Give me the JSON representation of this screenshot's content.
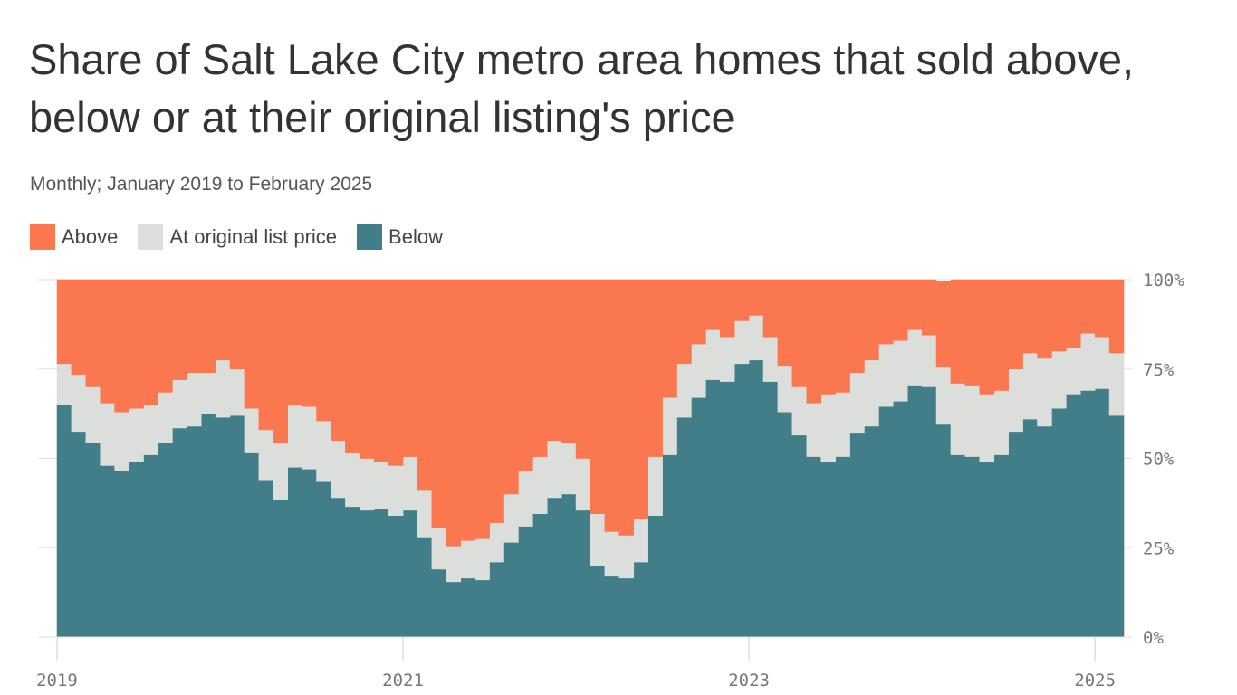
{
  "title": "Share of Salt Lake City metro area homes that sold above, below or at their original listing's price",
  "subtitle": "Monthly; January 2019 to February 2025",
  "legend": [
    {
      "label": "Above",
      "color": "#fb7750"
    },
    {
      "label": "At original list price",
      "color": "#dcdedc"
    },
    {
      "label": "Below",
      "color": "#427e89"
    }
  ],
  "chart_data": {
    "type": "area",
    "stacked": true,
    "percent": true,
    "x_start": "2019-01",
    "x_end": "2025-02",
    "x_tick_labels": [
      "2019",
      "2021",
      "2023",
      "2025"
    ],
    "y_tick_labels": [
      "0%",
      "25%",
      "50%",
      "75%",
      "100%"
    ],
    "ylim": [
      0,
      100
    ],
    "grid": true,
    "legend_position": "top-left",
    "series": [
      {
        "name": "Below",
        "color": "#427e89",
        "values": [
          65,
          57.5,
          54.5,
          48,
          46.5,
          49,
          51,
          54.5,
          58.5,
          59,
          62.5,
          61.5,
          62,
          51.5,
          44,
          38.5,
          47.5,
          47,
          43.5,
          39,
          36.5,
          35.5,
          36,
          34,
          35.5,
          28,
          19,
          15.5,
          16.5,
          16,
          21,
          26.5,
          31,
          34.5,
          39,
          40,
          35.5,
          20,
          17,
          16.5,
          21,
          34,
          51,
          61.5,
          67,
          72,
          71.5,
          76.5,
          77.5,
          71.5,
          63,
          56.5,
          50.5,
          49,
          50.5,
          57,
          59,
          64.5,
          66,
          70.5,
          70,
          59.5,
          51,
          50.5,
          49,
          51,
          57.5,
          61,
          59,
          64,
          68,
          69,
          69.5,
          62
        ]
      },
      {
        "name": "At original list price",
        "color": "#dcdedc",
        "values": [
          11.5,
          16,
          15.5,
          17.5,
          16.5,
          15,
          14,
          14,
          13.5,
          15,
          11.5,
          16,
          13,
          12.5,
          14,
          16,
          17.5,
          17.5,
          17,
          16,
          15,
          14.5,
          13,
          14,
          15,
          13,
          11.5,
          10,
          10.5,
          11.5,
          11,
          13.5,
          15.5,
          16,
          16,
          14.5,
          14.5,
          14.5,
          12.5,
          12,
          12,
          16.5,
          16,
          15,
          15,
          14,
          12.5,
          12,
          12.5,
          12.5,
          13,
          13.5,
          15,
          19,
          18,
          17,
          18.5,
          17.5,
          17,
          15.5,
          14.5,
          16,
          20,
          20,
          19,
          18,
          17.5,
          18.5,
          19,
          16,
          13,
          16,
          14.5,
          17.5
        ]
      },
      {
        "name": "Above",
        "color": "#fb7750",
        "values": [
          23.5,
          26.5,
          30,
          34.5,
          37,
          36,
          35,
          31.5,
          28,
          26,
          26,
          22.5,
          25,
          36,
          42,
          45.5,
          35,
          35.5,
          39.5,
          45,
          48.5,
          50,
          51,
          52,
          49.5,
          59,
          69.5,
          74.5,
          73,
          72.5,
          68,
          60,
          53.5,
          49.5,
          45,
          45.5,
          50,
          65.5,
          70.5,
          71.5,
          67,
          49.5,
          33,
          23.5,
          18,
          14,
          16,
          11.5,
          10,
          16,
          24,
          30,
          34.5,
          32,
          31.5,
          26,
          22.5,
          18,
          17,
          14,
          15.5,
          24,
          29,
          29.5,
          32,
          31,
          25,
          20.5,
          22,
          20,
          19,
          15,
          16,
          20.5
        ]
      }
    ]
  }
}
